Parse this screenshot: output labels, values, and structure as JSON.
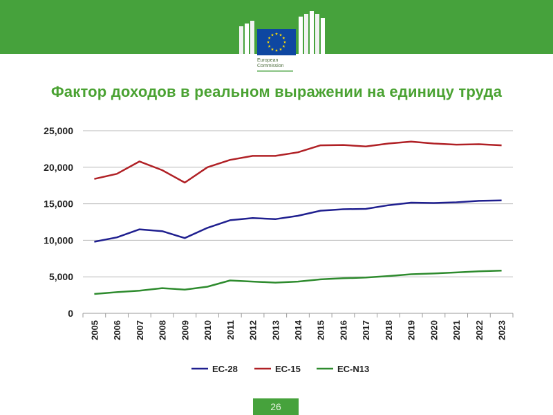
{
  "header": {
    "logo_line1": "European",
    "logo_line2": "Commission",
    "band_color": "#46a23c",
    "flag_color": "#0e47a1",
    "star_color": "#ffdd00"
  },
  "slide": {
    "title": "Фактор доходов в реальном выражении на единицу труда",
    "page_number": "26",
    "accent_color": "#4aa232"
  },
  "chart_data": {
    "type": "line",
    "x": [
      "2005",
      "2006",
      "2007",
      "2008",
      "2009",
      "2010",
      "2011",
      "2012",
      "2013",
      "2014",
      "2015",
      "2016",
      "2017",
      "2018",
      "2019",
      "2020",
      "2021",
      "2022",
      "2023"
    ],
    "ylim": [
      0,
      25000
    ],
    "yticks": [
      0,
      5000,
      10000,
      15000,
      20000,
      25000
    ],
    "ytick_labels": [
      "0",
      "5,000",
      "10,000",
      "15,000",
      "20,000",
      "25,000"
    ],
    "grid": true,
    "legend_position": "bottom",
    "series": [
      {
        "name": "ЕС-28",
        "color": "#1f1f8f",
        "values": [
          9800,
          10400,
          11500,
          11250,
          10300,
          11700,
          12750,
          13050,
          12900,
          13350,
          14050,
          14250,
          14300,
          14800,
          15150,
          15100,
          15200,
          15400,
          15450
        ]
      },
      {
        "name": "ЕС-15",
        "color": "#b02025",
        "values": [
          18400,
          19100,
          20800,
          19600,
          17900,
          20000,
          21000,
          21550,
          21550,
          22050,
          23000,
          23050,
          22850,
          23250,
          23500,
          23250,
          23100,
          23150,
          23000
        ]
      },
      {
        "name": "ЕС-N13",
        "color": "#2e8b2e",
        "values": [
          2650,
          2900,
          3100,
          3450,
          3250,
          3650,
          4500,
          4350,
          4200,
          4350,
          4650,
          4800,
          4900,
          5100,
          5350,
          5450,
          5600,
          5750,
          5850
        ]
      }
    ]
  }
}
